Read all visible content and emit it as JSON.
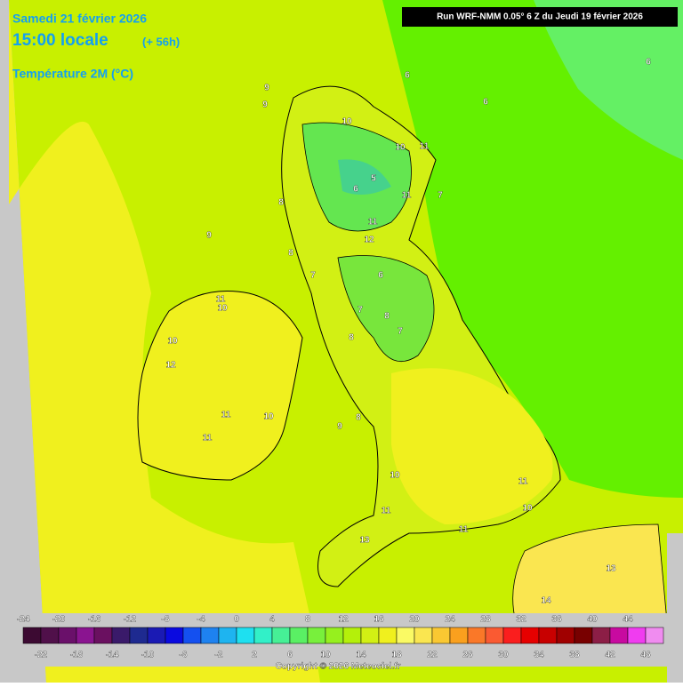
{
  "header": {
    "date": "Samedi 21 février 2026",
    "time": "15:00 locale",
    "lead": "(+ 56h)",
    "field": "Température 2M (°C)",
    "run": "Run WRF-NMM 0.05° 6 Z du Jeudi 19 février 2026"
  },
  "legend": {
    "top_labels": [
      -24,
      -20,
      -16,
      -12,
      -8,
      -4,
      0,
      4,
      8,
      12,
      16,
      20,
      24,
      28,
      32,
      36,
      40,
      44
    ],
    "bottom_labels": [
      -22,
      -18,
      -14,
      -10,
      -6,
      -2,
      2,
      6,
      10,
      14,
      18,
      22,
      26,
      30,
      34,
      38,
      42,
      46
    ],
    "colors": [
      "#3c0a32",
      "#50104a",
      "#6a106a",
      "#8a1490",
      "#6a1060",
      "#3a1a6a",
      "#1e2a90",
      "#1a1ab4",
      "#0a0ae0",
      "#1450f0",
      "#1e82f0",
      "#1eb4f0",
      "#1ee0f0",
      "#32f0c8",
      "#46f096",
      "#5af064",
      "#78f03c",
      "#96f01e",
      "#b4f00a",
      "#d2f014",
      "#f0f01e",
      "#fafa64",
      "#fae650",
      "#fac832",
      "#faa01e",
      "#fa7828",
      "#fa5a32",
      "#fa1e1e",
      "#e60000",
      "#c80000",
      "#a00000",
      "#780000",
      "#8c1e46",
      "#c80aa0",
      "#f03cf0",
      "#f08cf0"
    ]
  },
  "map_labels": [
    "9",
    "9",
    "9",
    "8",
    "8",
    "7",
    "6",
    "6",
    "10",
    "10",
    "11",
    "11",
    "12",
    "11",
    "5",
    "6",
    "6",
    "8",
    "7",
    "8",
    "7",
    "10",
    "11",
    "12",
    "10",
    "11",
    "10",
    "11",
    "9",
    "10",
    "11",
    "13",
    "11",
    "10",
    "11",
    "13",
    "14",
    "8",
    "7",
    "6"
  ],
  "copyright": "Copyright © 2026 Meteociel.fr"
}
